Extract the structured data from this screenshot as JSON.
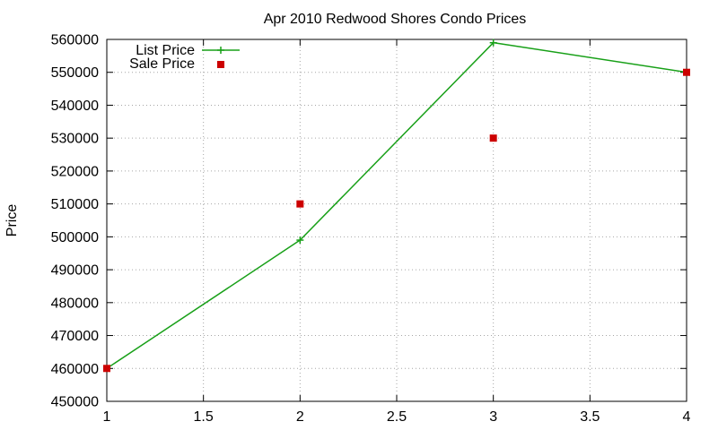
{
  "chart_data": {
    "type": "line",
    "title": "Apr 2010 Redwood Shores Condo Prices",
    "ylabel": "Price",
    "xlim": [
      1,
      4
    ],
    "ylim": [
      450000,
      560000
    ],
    "x_ticks": [
      1,
      1.5,
      2,
      2.5,
      3,
      3.5,
      4
    ],
    "y_ticks": [
      450000,
      460000,
      470000,
      480000,
      490000,
      500000,
      510000,
      520000,
      530000,
      540000,
      550000,
      560000
    ],
    "grid": true,
    "legend_position": "top-left",
    "series": [
      {
        "name": "List Price",
        "style": "linespoints",
        "marker": "plus",
        "color": "#18a018",
        "x": [
          1,
          2,
          3,
          4
        ],
        "y": [
          460000,
          499000,
          559000,
          550000
        ]
      },
      {
        "name": "Sale Price",
        "style": "points",
        "marker": "square",
        "color": "#cc0000",
        "x": [
          1,
          2,
          3,
          4
        ],
        "y": [
          460000,
          510000,
          530000,
          550000
        ]
      }
    ]
  }
}
